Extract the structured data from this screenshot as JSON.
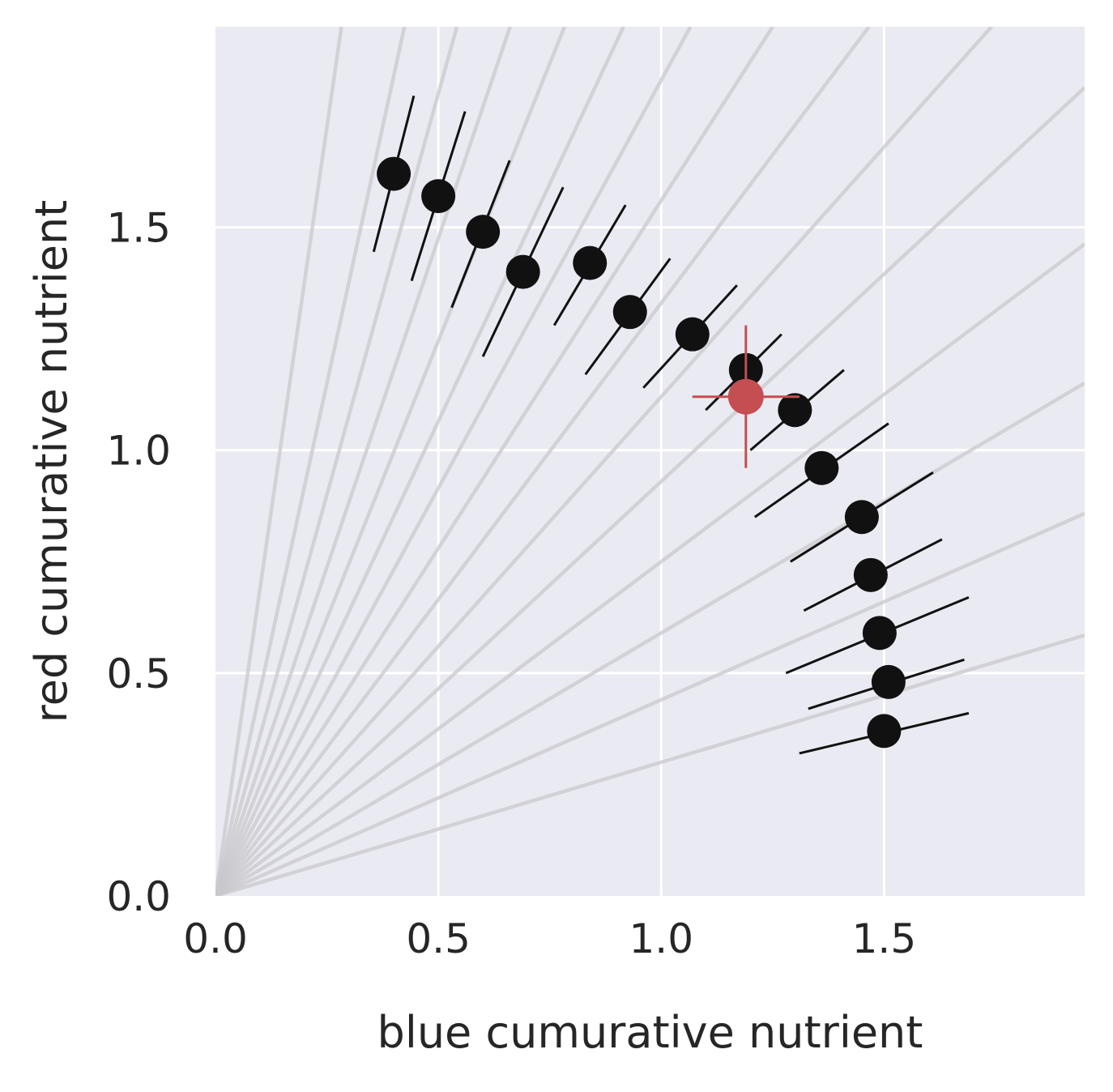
{
  "chart_data": {
    "type": "scatter",
    "title": "",
    "xlabel": "blue cumurative nutrient",
    "ylabel": "red cumurative nutrient",
    "xlim": [
      0,
      1.95
    ],
    "ylim": [
      0,
      1.95
    ],
    "xticks": [
      "0.0",
      "0.5",
      "1.0",
      "1.5"
    ],
    "yticks": [
      "0.0",
      "0.5",
      "1.0",
      "1.5"
    ],
    "grid": true,
    "legend": "none",
    "colors": {
      "background": "#eaeaf2",
      "grid": "#ffffff",
      "rays": "#c8c8cc",
      "points": "#111111",
      "highlight": "#c44e52"
    },
    "ray_slopes": [
      6.9,
      4.6,
      3.6,
      2.95,
      2.49,
      2.13,
      1.83,
      1.56,
      1.33,
      1.12,
      0.93,
      0.75,
      0.59,
      0.44,
      0.3
    ],
    "series": [
      {
        "points": [
          {
            "x": 0.4,
            "y": 1.62,
            "err": [
              [
                0.355,
                1.445
              ],
              [
                0.445,
                1.795
              ]
            ]
          },
          {
            "x": 0.5,
            "y": 1.57,
            "err": [
              [
                0.44,
                1.38
              ],
              [
                0.56,
                1.76
              ]
            ]
          },
          {
            "x": 0.6,
            "y": 1.49,
            "err": [
              [
                0.53,
                1.32
              ],
              [
                0.66,
                1.65
              ]
            ]
          },
          {
            "x": 0.69,
            "y": 1.4,
            "err": [
              [
                0.6,
                1.21
              ],
              [
                0.78,
                1.59
              ]
            ]
          },
          {
            "x": 0.84,
            "y": 1.42,
            "err": [
              [
                0.76,
                1.28
              ],
              [
                0.92,
                1.55
              ]
            ]
          },
          {
            "x": 0.93,
            "y": 1.31,
            "err": [
              [
                0.83,
                1.17
              ],
              [
                1.02,
                1.43
              ]
            ]
          },
          {
            "x": 1.07,
            "y": 1.26,
            "err": [
              [
                0.96,
                1.14
              ],
              [
                1.17,
                1.37
              ]
            ]
          },
          {
            "x": 1.19,
            "y": 1.18,
            "err": [
              [
                1.1,
                1.09
              ],
              [
                1.27,
                1.26
              ]
            ]
          },
          {
            "x": 1.3,
            "y": 1.09,
            "err": [
              [
                1.2,
                1.0
              ],
              [
                1.41,
                1.18
              ]
            ]
          },
          {
            "x": 1.36,
            "y": 0.96,
            "err": [
              [
                1.21,
                0.85
              ],
              [
                1.51,
                1.06
              ]
            ]
          },
          {
            "x": 1.45,
            "y": 0.85,
            "err": [
              [
                1.29,
                0.75
              ],
              [
                1.61,
                0.95
              ]
            ]
          },
          {
            "x": 1.47,
            "y": 0.72,
            "err": [
              [
                1.32,
                0.64
              ],
              [
                1.63,
                0.8
              ]
            ]
          },
          {
            "x": 1.49,
            "y": 0.59,
            "err": [
              [
                1.28,
                0.5
              ],
              [
                1.69,
                0.67
              ]
            ]
          },
          {
            "x": 1.51,
            "y": 0.48,
            "err": [
              [
                1.33,
                0.42
              ],
              [
                1.68,
                0.53
              ]
            ]
          },
          {
            "x": 1.5,
            "y": 0.37,
            "err": [
              [
                1.31,
                0.32
              ],
              [
                1.69,
                0.41
              ]
            ]
          }
        ]
      },
      {
        "highlight": true,
        "points": [
          {
            "x": 1.19,
            "y": 1.12,
            "xerr": [
              1.07,
              1.31
            ],
            "yerr": [
              0.96,
              1.28
            ]
          }
        ]
      }
    ]
  }
}
